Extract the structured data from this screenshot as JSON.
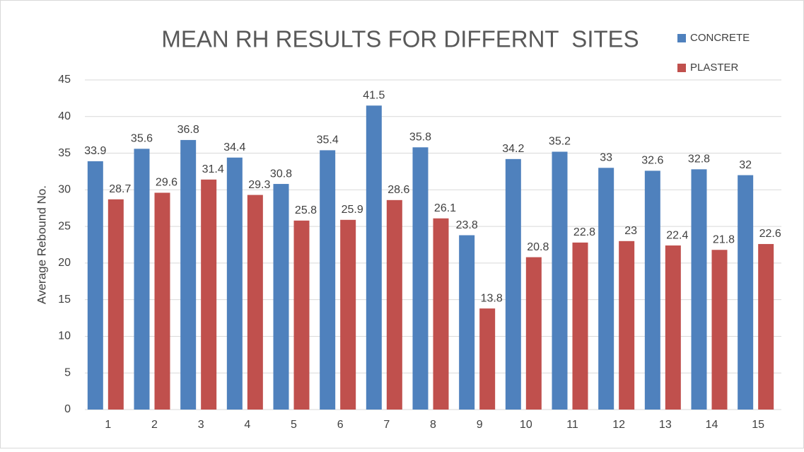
{
  "chart_data": {
    "type": "bar",
    "title": "MEAN RH RESULTS FOR DIFFERNT  SITES",
    "y_label": "Average Rebound No.",
    "categories": [
      "1",
      "2",
      "3",
      "4",
      "5",
      "6",
      "7",
      "8",
      "9",
      "10",
      "11",
      "12",
      "13",
      "14",
      "15"
    ],
    "series": [
      {
        "name": "CONCRETE",
        "color": "#4f81bd",
        "values": [
          33.9,
          35.6,
          36.8,
          34.4,
          30.8,
          35.4,
          41.5,
          35.8,
          23.8,
          34.2,
          35.2,
          33,
          32.6,
          32.8,
          32
        ]
      },
      {
        "name": "PLASTER",
        "color": "#c0504d",
        "values": [
          28.7,
          29.6,
          31.4,
          29.3,
          25.8,
          25.9,
          28.6,
          26.1,
          13.8,
          20.8,
          22.8,
          23,
          22.4,
          21.8,
          22.6
        ]
      }
    ],
    "ylim": [
      0,
      45
    ],
    "yticks": [
      0,
      5,
      10,
      15,
      20,
      25,
      30,
      35,
      40,
      45
    ],
    "grid": true,
    "legend": "top-right"
  }
}
